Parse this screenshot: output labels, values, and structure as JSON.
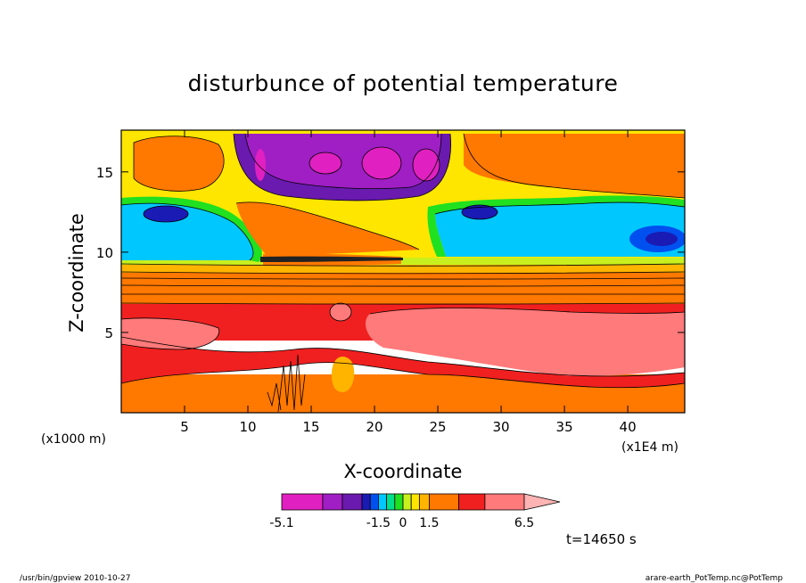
{
  "title": "disturbunce of potential temperature",
  "chart_data": {
    "type": "heatmap",
    "title": "disturbunce of potential temperature",
    "xlabel": "X-coordinate",
    "ylabel": "Z-coordinate",
    "x_unit_label": "(x1E4 m)",
    "y_unit_label": "(x1000 m)",
    "xlim": [
      0,
      44.5
    ],
    "ylim": [
      0,
      17.6
    ],
    "x_ticks": [
      5,
      10,
      15,
      20,
      25,
      30,
      35,
      40
    ],
    "y_ticks": [
      5,
      10,
      15
    ],
    "colorbar": {
      "levels": [
        -5.1,
        -4.5,
        -3.5,
        -2.5,
        -2.0,
        -1.5,
        -1.0,
        -0.5,
        0,
        0.5,
        1.0,
        1.5,
        2.5,
        4.5,
        6.5
      ],
      "colors": [
        "#e020c0",
        "#9f1fc4",
        "#6a1aae",
        "#1a1ab4",
        "#0050f0",
        "#00c8ff",
        "#00e08c",
        "#20e020",
        "#c8f01e",
        "#ffe600",
        "#ffb400",
        "#ff7800",
        "#f02020",
        "#ff7a7a",
        "#ffb4b4"
      ],
      "tick_labels": [
        "-5.1",
        "-1.5",
        "0",
        "1.5",
        "6.5"
      ],
      "extend": "max"
    },
    "time_label": "t=14650 s",
    "grid": false,
    "description_layers_z": [
      {
        "z_range": [
          0,
          1.2
        ],
        "level": "2.5"
      },
      {
        "z_range": [
          1.2,
          3.5
        ],
        "level": "4.5"
      },
      {
        "z_range": [
          3.5,
          7.0
        ],
        "level": "6.5"
      },
      {
        "z_range": [
          7.0,
          9.0
        ],
        "level": "2.5"
      },
      {
        "z_range": [
          9.0,
          12.0
        ],
        "level": "-1.0"
      },
      {
        "z_range": [
          14.0,
          17.6
        ],
        "level": "-5.1"
      }
    ]
  },
  "footer": {
    "left": "/usr/bin/gpview   2010-10-27",
    "right": "arare-earth_PotTemp.nc@PotTemp"
  }
}
